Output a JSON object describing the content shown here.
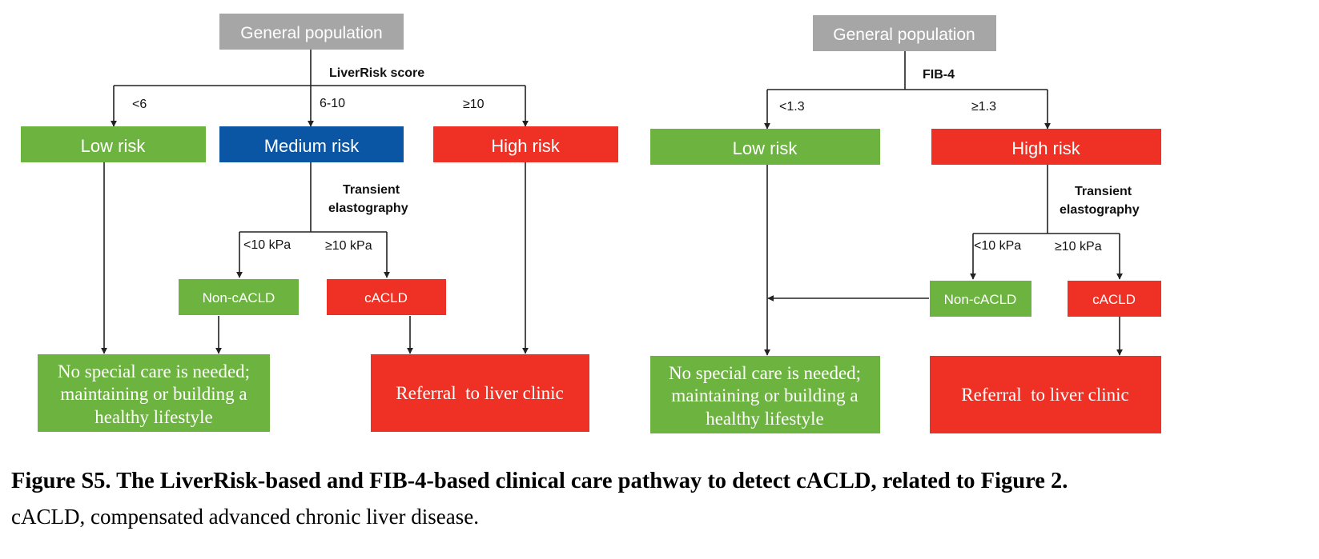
{
  "colors": {
    "gray": "#a6a6a6",
    "green": "#6db33f",
    "blue": "#0b56a4",
    "red": "#ee3124"
  },
  "left": {
    "start": "General population",
    "criterion": "LiverRisk score",
    "branch_low": "<6",
    "branch_mid": "6-10",
    "branch_high": "≥10",
    "low": "Low risk",
    "medium": "Medium risk",
    "high": "High risk",
    "te_line1": "Transient",
    "te_line2": "elastography",
    "kpa_low": "<10 kPa",
    "kpa_high": "≥10 kPa",
    "non_cacld": "Non-cACLD",
    "cacld": "cACLD",
    "no_care_1": "No special care is needed;",
    "no_care_2": "maintaining or building a",
    "no_care_3": "healthy lifestyle",
    "referral": "Referral  to liver clinic"
  },
  "right": {
    "start": "General population",
    "criterion": "FIB-4",
    "branch_low": "<1.3",
    "branch_high": "≥1.3",
    "low": "Low risk",
    "high": "High risk",
    "te_line1": "Transient",
    "te_line2": "elastography",
    "kpa_low": "<10 kPa",
    "kpa_high": "≥10 kPa",
    "non_cacld": "Non-cACLD",
    "cacld": "cACLD",
    "no_care_1": "No special care is needed;",
    "no_care_2": "maintaining or building a",
    "no_care_3": "healthy lifestyle",
    "referral": "Referral  to liver clinic"
  },
  "caption": {
    "title": "Figure S5. The LiverRisk-based and FIB-4-based clinical care pathway to detect cACLD, related to Figure 2.",
    "body": "cACLD, compensated advanced chronic liver disease."
  }
}
